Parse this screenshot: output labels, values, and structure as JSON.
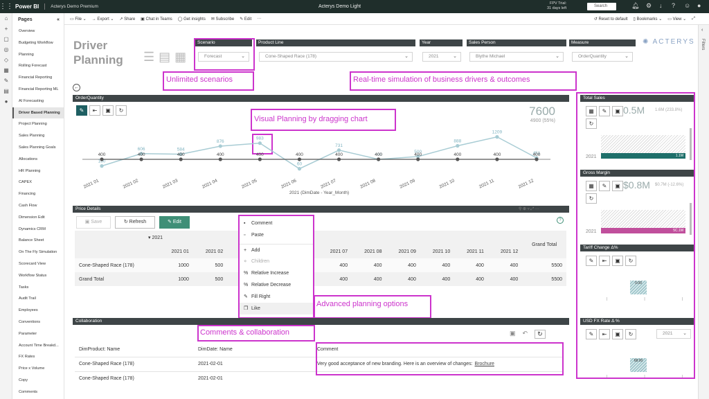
{
  "app": {
    "brand": "Power BI",
    "workspace": "Acterys Demo Premium",
    "report_name": "Acterys Demo Light",
    "trial_line1": "FPV Trial:",
    "trial_line2": "31 days left",
    "search_placeholder": "Search"
  },
  "pages_panel": {
    "title": "Pages",
    "items": [
      "Overview",
      "Budgeting Workflow",
      "Planning",
      "Rolling Forecast",
      "Financial Reporting",
      "Financial Reporting ML",
      "AI Forecasting",
      "Driver Based Planning",
      "Project Planning",
      "Sales Planning",
      "Sales Planning Goals",
      "Allocations",
      "HR Planning",
      "CAPEX",
      "Financing",
      "Cash Flow",
      "Dimension Edit",
      "Dynamics CRM",
      "Balance Sheet",
      "On The Fly Simulation",
      "Scorecard View",
      "Workflow Status",
      "Tasks",
      "Audit Trail",
      "Employees",
      "Conventions",
      "Parameter",
      "Account Time Breakd...",
      "FX Rates",
      "Price x Volume",
      "Copy",
      "Comments"
    ],
    "selected_index": 7
  },
  "toolbar": {
    "items": [
      "File",
      "Export",
      "Share",
      "Chat in Teams",
      "Get insights",
      "Subscribe",
      "Edit"
    ],
    "reset": "Reset to default",
    "bookmarks": "Bookmarks",
    "view": "View"
  },
  "filters_label": "Filters",
  "report": {
    "title_line1": "Driver",
    "title_line2": "Planning",
    "logo": "ACTERYS",
    "slicers": [
      {
        "label": "Scenario",
        "value": "Forecast"
      },
      {
        "label": "Product Line",
        "value": "Cone-Shaped Race (178)"
      },
      {
        "label": "Year",
        "value": "2021"
      },
      {
        "label": "Sales Person",
        "value": "Blythe Michael"
      },
      {
        "label": "Measure",
        "value": "OrderQuantity"
      }
    ]
  },
  "annotations": {
    "unlimited": "Unlimited scenarios",
    "realtime": "Real-time simulation of business drivers & outcomes",
    "visual": "Visual Planning by dragging chart",
    "advanced": "Advanced planning options",
    "comments": "Comments & collaboration"
  },
  "order_chart": {
    "band": "OrderQuantity",
    "kpi_value": "7600",
    "kpi_sub": "4900 (55%)"
  },
  "chart_data": {
    "type": "line",
    "categories": [
      "2021 01",
      "2021 02",
      "2021 03",
      "2021 04",
      "2021 05",
      "2021 06",
      "2021 07",
      "2021 08",
      "2021 09",
      "2021 10",
      "2021 11",
      "2021 12"
    ],
    "xlabel": "2021 (DimDate - Year_Month)",
    "series": [
      {
        "values": [
          160,
          606,
          584,
          876,
          983,
          60,
          731,
          400,
          500,
          888,
          1209,
          451
        ],
        "color": "#a8ccd4"
      },
      {
        "values": [
          400,
          400,
          400,
          400,
          400,
          400,
          400,
          400,
          400,
          400,
          400,
          400
        ],
        "color": "#555555"
      }
    ]
  },
  "price_details": {
    "band": "Price Details",
    "save": "Save",
    "refresh": "Refresh",
    "edit": "Edit",
    "year_header": "2021",
    "grand_total_header": "Grand Total",
    "col_headers": [
      "2021 01",
      "2021 02",
      "2021 03",
      "",
      "",
      "2021 06",
      "2021 07",
      "2021 08",
      "2021 09",
      "2021 10",
      "2021 11",
      "2021 12"
    ],
    "rows": [
      {
        "label": "Cone-Shaped Race (178)",
        "values": [
          "1000",
          "500",
          "400",
          "",
          "",
          "400",
          "400",
          "400",
          "400",
          "400",
          "400",
          "400"
        ],
        "total": "5500"
      },
      {
        "label": "Grand Total",
        "values": [
          "1000",
          "500",
          "400",
          "",
          "",
          "400",
          "400",
          "400",
          "400",
          "400",
          "400",
          "400"
        ],
        "total": "5500"
      }
    ]
  },
  "context_menu": {
    "items": [
      {
        "icon": "comment-icon",
        "glyph": "▪",
        "label": "Comment",
        "disabled": false
      },
      {
        "icon": "paste-icon",
        "glyph": "▫",
        "label": "Paste",
        "disabled": false
      },
      {
        "icon": "add-icon",
        "glyph": "+",
        "label": "Add",
        "disabled": false
      },
      {
        "icon": "children-icon",
        "glyph": "⋄",
        "label": "Children",
        "disabled": true
      },
      {
        "icon": "percent-icon",
        "glyph": "%",
        "label": "Relative Increase",
        "disabled": false
      },
      {
        "icon": "percent-icon",
        "glyph": "%",
        "label": "Relative Decrease",
        "disabled": false
      },
      {
        "icon": "pencil-icon",
        "glyph": "✎",
        "label": "Fill Right",
        "disabled": false
      },
      {
        "icon": "copy-icon",
        "glyph": "❐",
        "label": "Like",
        "disabled": false
      }
    ]
  },
  "collaboration": {
    "band": "Collaboration",
    "headers": [
      "DimProduct: Name",
      "DimDate: Name",
      "Comment"
    ],
    "rows": [
      {
        "product": "Cone-Shaped Race (178)",
        "date": "2021-02-01",
        "comment": "Very good acceptance of new branding. Here is an overview of changes:",
        "link": "Brochure"
      },
      {
        "product": "Cone-Shaped Race (178)",
        "date": "2021-02-01",
        "comment": "",
        "link": ""
      }
    ]
  },
  "cards": [
    {
      "title": "Total Sales",
      "value": "0.5M",
      "sub": "1.6M (233.8%)",
      "year": "2021",
      "bar_label": "1.1M",
      "bar_color": "#1e6f6a"
    },
    {
      "title": "Gross Margin",
      "value": "$0.8M",
      "sub": "$0.7M (-12.6%)",
      "year": "2021",
      "bar_label": "5C.1M",
      "bar_color": "#c04f9c"
    },
    {
      "title": "Tariff Change Δ%",
      "mini_value": "0.00"
    },
    {
      "title": "USD FX Rate Δ %",
      "mini_value": "68.00",
      "year": "2021"
    }
  ]
}
